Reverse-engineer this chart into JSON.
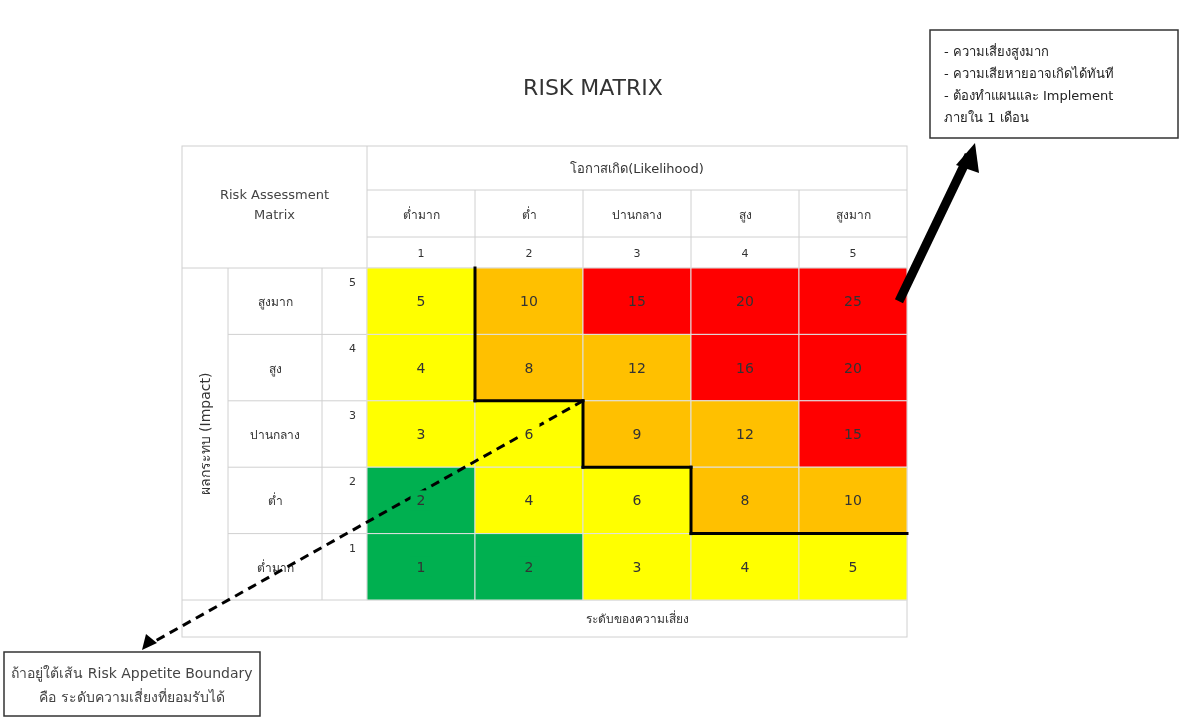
{
  "chart_data": {
    "type": "heatmap",
    "title": "RISK MATRIX",
    "xlabel": "โอกาสเกิด(Likelihood)",
    "ylabel": "ผลกระทบ (Impact)",
    "categories": [
      "ต่ำมาก",
      "ต่ำ",
      "ปานกลาง",
      "สูง",
      "สูงมาก"
    ],
    "y_categories": [
      "สูงมาก",
      "สูง",
      "ปานกลาง",
      "ต่ำ",
      "ต่ำมาก"
    ],
    "y2_categories": [
      "5",
      "4",
      "3",
      "2",
      "1"
    ],
    "cells": [
      [
        5,
        10,
        15,
        20,
        25
      ],
      [
        4,
        8,
        12,
        16,
        20
      ],
      [
        3,
        6,
        9,
        12,
        15
      ],
      [
        2,
        4,
        6,
        8,
        10
      ],
      [
        1,
        2,
        3,
        4,
        5
      ]
    ],
    "colors": [
      [
        "#ffff00",
        "#ffc000",
        "#ff0000",
        "#ff0000",
        "#ff0000"
      ],
      [
        "#ffff00",
        "#ffc000",
        "#ffc000",
        "#ff0000",
        "#ff0000"
      ],
      [
        "#ffff00",
        "#ffff00",
        "#ffc000",
        "#ffc000",
        "#ff0000"
      ],
      [
        "#00b050",
        "#ffff00",
        "#ffff00",
        "#ffc000",
        "#ffc000"
      ],
      [
        "#00b050",
        "#00b050",
        "#ffff00",
        "#ffff00",
        "#ffff00"
      ]
    ],
    "data_labels": true,
    "annotations": [
      "Risk Assessment Matrix",
      "ระดับของความเสี่ยง",
      "1",
      "2",
      "3",
      "4",
      "5",
      "- ความเสี่ยงสูงมาก\n- ความเสียหายอาจเกิดได้ทันที\n- ต้องทำแผนและ Implement\nภายใน 1 เดือน",
      "ถ้าอยู่ใต้เส้น Risk Appetite Boundary\nคือ ระดับความเสี่ยงที่ยอมรับได้"
    ]
  }
}
